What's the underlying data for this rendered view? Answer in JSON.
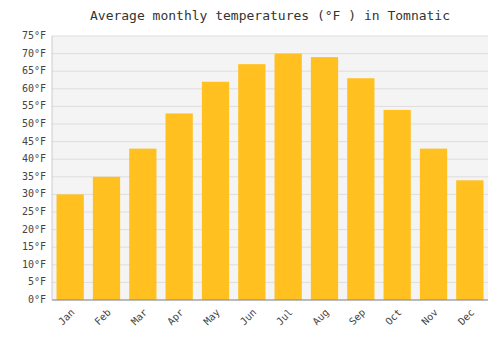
{
  "chart_data": {
    "type": "bar",
    "title": "Average monthly temperatures (°F ) in Tomnatic",
    "categories": [
      "Jan",
      "Feb",
      "Mar",
      "Apr",
      "May",
      "Jun",
      "Jul",
      "Aug",
      "Sep",
      "Oct",
      "Nov",
      "Dec"
    ],
    "values": [
      30,
      35,
      43,
      53,
      62,
      67,
      70,
      69,
      63,
      54,
      43,
      34
    ],
    "color": "#FFC020",
    "ylim": [
      0,
      75
    ],
    "yticks": [
      {
        "value": 0,
        "label": "0°F"
      },
      {
        "value": 5,
        "label": "5°F"
      },
      {
        "value": 10,
        "label": "10°F"
      },
      {
        "value": 15,
        "label": "15°F"
      },
      {
        "value": 20,
        "label": "20°F"
      },
      {
        "value": 25,
        "label": "25°F"
      },
      {
        "value": 30,
        "label": "30°F"
      },
      {
        "value": 35,
        "label": "35°F"
      },
      {
        "value": 40,
        "label": "40°F"
      },
      {
        "value": 45,
        "label": "45°F"
      },
      {
        "value": 50,
        "label": "50°F"
      },
      {
        "value": 55,
        "label": "55°F"
      },
      {
        "value": 60,
        "label": "60°F"
      },
      {
        "value": 65,
        "label": "65°F"
      },
      {
        "value": 70,
        "label": "70°F"
      },
      {
        "value": 75,
        "label": "75°F"
      }
    ],
    "grid": true
  }
}
